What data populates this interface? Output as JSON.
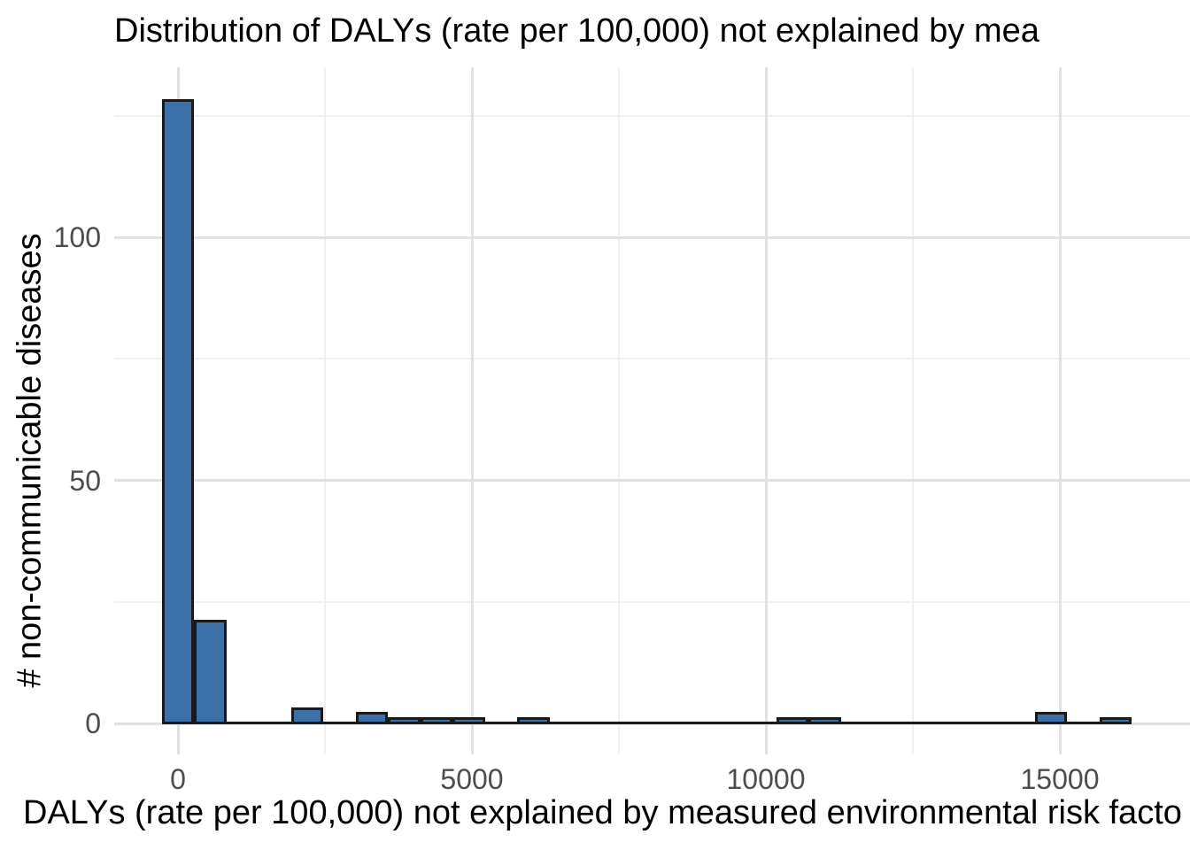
{
  "chart_data": {
    "type": "bar",
    "subtype": "histogram",
    "title": "Distribution of DALYs (rate per 100,000) not explained by mea",
    "xlabel": "DALYs (rate per 100,000) not explained by measured environmental risk facto",
    "ylabel": "# non-communicable diseases",
    "binwidth": 550,
    "bins": [
      {
        "center": 0,
        "count": 128
      },
      {
        "center": 550,
        "count": 21
      },
      {
        "center": 2200,
        "count": 3
      },
      {
        "center": 3300,
        "count": 2
      },
      {
        "center": 3850,
        "count": 1
      },
      {
        "center": 4400,
        "count": 1
      },
      {
        "center": 4950,
        "count": 1
      },
      {
        "center": 6050,
        "count": 1
      },
      {
        "center": 10450,
        "count": 1
      },
      {
        "center": 11000,
        "count": 1
      },
      {
        "center": 14850,
        "count": 2
      },
      {
        "center": 15950,
        "count": 1
      }
    ],
    "x_major_ticks": [
      {
        "value": 0,
        "label": "0"
      },
      {
        "value": 5000,
        "label": "5000"
      },
      {
        "value": 10000,
        "label": "10000"
      },
      {
        "value": 15000,
        "label": "15000"
      }
    ],
    "x_minor_ticks": [
      2500,
      7500,
      12500
    ],
    "y_major_ticks": [
      {
        "value": 0,
        "label": "0"
      },
      {
        "value": 50,
        "label": "50"
      },
      {
        "value": 100,
        "label": "100"
      }
    ],
    "y_minor_ticks": [
      25,
      75,
      125
    ],
    "xlim": [
      -1080,
      17150
    ],
    "ylim": [
      0,
      135
    ],
    "grid": "major+minor",
    "legend": "none",
    "colors": {
      "bar_fill": "#3B70A8",
      "bar_border": "#1A1A1A",
      "zero_line": "#1A1A1A",
      "grid_major": "#E2E2E2",
      "grid_minor": "#F0F0F0",
      "tick_label": "#4D4D4D",
      "text": "#000000",
      "background": "#FFFFFF"
    }
  }
}
